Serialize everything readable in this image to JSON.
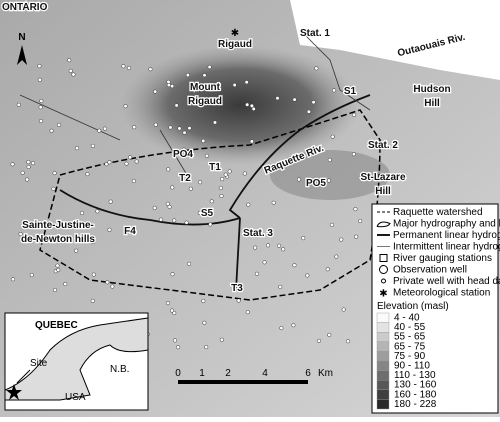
{
  "map": {
    "north": "N",
    "labels": [
      [
        "ONTARIO"
      ],
      [
        "Rigaud"
      ],
      [
        "Outaouais Riv."
      ],
      [
        "Stat. 1"
      ],
      [
        "S1"
      ],
      [
        "Hudson",
        "Hill"
      ],
      [
        "Mount",
        "Rigaud"
      ],
      [
        "Stat. 2"
      ],
      [
        "PO4"
      ],
      [
        "T1"
      ],
      [
        "T2"
      ],
      [
        "Raquette Riv."
      ],
      [
        "St-Lazare",
        "Hill"
      ],
      [
        "PO5"
      ],
      [
        "S5"
      ],
      [
        "Stat. 3"
      ],
      [
        "F4"
      ],
      [
        "Sainte-Justine-",
        "de-Newton hills"
      ],
      [
        "T3"
      ]
    ],
    "inset": {
      "labels": [
        "QUEBEC",
        "Site",
        "N.B.",
        "USA"
      ]
    },
    "scale": {
      "ticks": [
        "0",
        "1",
        "2",
        "4",
        "6"
      ],
      "unit": "Km"
    }
  },
  "legend": {
    "items": [
      "Raquette watershed",
      "Major hydrography and lakes",
      "Permanent linear hydrography",
      "Intermittent linear hydrography",
      "River gauging stations",
      "Observation well",
      "Private well with head data",
      "Meteorological station"
    ],
    "elevation_title": "Elevation (masl)",
    "elevation_classes": [
      "4 - 40",
      "40 - 55",
      "55 - 65",
      "65 - 75",
      "75 - 90",
      "90 - 110",
      "110 - 130",
      "130 - 160",
      "160 - 180",
      "180 - 228"
    ]
  }
}
